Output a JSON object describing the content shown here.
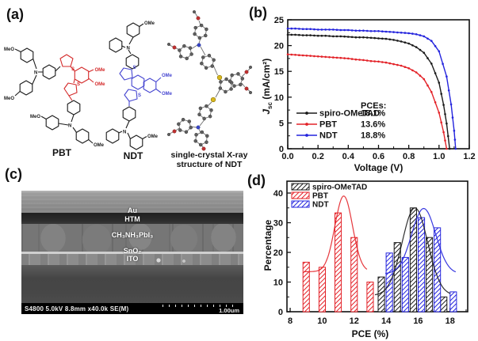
{
  "figure": {
    "panel_labels": {
      "a": "(a)",
      "b": "(b)",
      "c": "(c)",
      "d": "(d)"
    }
  },
  "panel_a": {
    "molecule_names": {
      "pbt": "PBT",
      "ndt": "NDT"
    },
    "xray_caption": [
      "single-crystal X-ray",
      "structure of NDT"
    ],
    "atom_labels": {
      "s": "S",
      "n": "N"
    },
    "pbt_substituents": [
      "MeO",
      "MeO",
      "OMe",
      "OMe",
      "MeO",
      "OMe"
    ],
    "ndt_substituents": [
      "OMe",
      "OMe",
      "OMe",
      "OMe"
    ]
  },
  "panel_c": {
    "layers": [
      "Au",
      "HTM",
      "CH₃NH₃PbI₃",
      "SnO₂",
      "ITO"
    ],
    "footer_left": "S4800 5.0kV 8.8mm x40.0k SE(M)",
    "footer_right": "1.00um"
  },
  "chart_data": [
    {
      "type": "line",
      "title": "",
      "xlabel": "Voltage (V)",
      "ylabel": "Jsc (mA/cm2)",
      "ylabel_parts": {
        "sym": "J",
        "sub": "sc",
        "rest": " (mA/cm²)"
      },
      "xlim": [
        0,
        1.2
      ],
      "ylim": [
        0,
        25
      ],
      "xtick_vals": [
        0,
        0.2,
        0.4,
        0.6,
        0.8,
        1.0,
        1.2
      ],
      "xtick_labels": [
        "0.0",
        "0.2",
        "0.4",
        "0.6",
        "0.8",
        "1.0",
        "1.2"
      ],
      "xminor_vals": [
        0.1,
        0.3,
        0.5,
        0.7,
        0.9,
        1.1
      ],
      "ytick_vals": [
        0,
        5,
        10,
        15,
        20,
        25
      ],
      "ytick_labels": [
        "0",
        "5",
        "10",
        "15",
        "20",
        "25"
      ],
      "yminor_vals": [
        2.5,
        7.5,
        12.5,
        17.5,
        22.5
      ],
      "legend_header": "PCEs:",
      "legend_position": "lower-left",
      "grid": false,
      "series": [
        {
          "name": "spiro-OMeTAD",
          "color": "#1a1a1a",
          "pce": "18.1%",
          "jsc": 22.1,
          "voc": 1.07,
          "points": [
            [
              0,
              22.1
            ],
            [
              0.05,
              22.1
            ],
            [
              0.1,
              22.0
            ],
            [
              0.15,
              22.0
            ],
            [
              0.2,
              21.9
            ],
            [
              0.25,
              21.9
            ],
            [
              0.3,
              21.8
            ],
            [
              0.35,
              21.8
            ],
            [
              0.4,
              21.7
            ],
            [
              0.45,
              21.6
            ],
            [
              0.5,
              21.6
            ],
            [
              0.55,
              21.5
            ],
            [
              0.6,
              21.4
            ],
            [
              0.65,
              21.3
            ],
            [
              0.7,
              21.1
            ],
            [
              0.75,
              20.8
            ],
            [
              0.8,
              20.4
            ],
            [
              0.85,
              19.7
            ],
            [
              0.9,
              18.6
            ],
            [
              0.95,
              16.5
            ],
            [
              1.0,
              12.8
            ],
            [
              1.03,
              8.5
            ],
            [
              1.05,
              4.9
            ],
            [
              1.07,
              0
            ]
          ]
        },
        {
          "name": "PBT",
          "color": "#e32228",
          "pce": "13.6%",
          "jsc": 18.3,
          "voc": 1.05,
          "points": [
            [
              0,
              18.3
            ],
            [
              0.05,
              18.2
            ],
            [
              0.1,
              18.1
            ],
            [
              0.15,
              18.0
            ],
            [
              0.2,
              17.9
            ],
            [
              0.25,
              17.8
            ],
            [
              0.3,
              17.7
            ],
            [
              0.35,
              17.6
            ],
            [
              0.4,
              17.5
            ],
            [
              0.45,
              17.3
            ],
            [
              0.5,
              17.2
            ],
            [
              0.55,
              17.0
            ],
            [
              0.6,
              16.9
            ],
            [
              0.65,
              16.7
            ],
            [
              0.7,
              16.4
            ],
            [
              0.75,
              16.1
            ],
            [
              0.8,
              15.6
            ],
            [
              0.85,
              14.8
            ],
            [
              0.9,
              13.5
            ],
            [
              0.95,
              11.0
            ],
            [
              1.0,
              7.0
            ],
            [
              1.03,
              3.2
            ],
            [
              1.05,
              0
            ]
          ]
        },
        {
          "name": "NDT",
          "color": "#2424dd",
          "pce": "18.8%",
          "jsc": 23.3,
          "voc": 1.11,
          "points": [
            [
              0,
              23.3
            ],
            [
              0.05,
              23.3
            ],
            [
              0.1,
              23.2
            ],
            [
              0.15,
              23.2
            ],
            [
              0.2,
              23.1
            ],
            [
              0.25,
              23.1
            ],
            [
              0.3,
              23.1
            ],
            [
              0.35,
              23.0
            ],
            [
              0.4,
              23.0
            ],
            [
              0.45,
              22.9
            ],
            [
              0.5,
              22.9
            ],
            [
              0.55,
              22.8
            ],
            [
              0.6,
              22.8
            ],
            [
              0.65,
              22.7
            ],
            [
              0.7,
              22.6
            ],
            [
              0.75,
              22.5
            ],
            [
              0.8,
              22.4
            ],
            [
              0.85,
              22.2
            ],
            [
              0.9,
              21.8
            ],
            [
              0.95,
              20.9
            ],
            [
              1.0,
              18.9
            ],
            [
              1.05,
              14.0
            ],
            [
              1.08,
              8.6
            ],
            [
              1.1,
              3.5
            ],
            [
              1.11,
              0
            ]
          ]
        }
      ]
    },
    {
      "type": "bar",
      "title": "",
      "xlabel": "PCE (%)",
      "ylabel": "Percentage",
      "xlim": [
        7.8,
        19.1
      ],
      "ylim": [
        0,
        44
      ],
      "xtick_vals": [
        8,
        10,
        12,
        14,
        16,
        18
      ],
      "xtick_labels": [
        "8",
        "10",
        "12",
        "14",
        "16",
        "18"
      ],
      "xminor_vals": [
        9,
        11,
        13,
        15,
        17,
        19
      ],
      "ytick_vals": [
        0,
        10,
        20,
        30,
        40
      ],
      "ytick_labels": [
        "0",
        "10",
        "20",
        "30",
        "40"
      ],
      "yminor_vals": [
        5,
        15,
        25,
        35
      ],
      "bar_width": 0.4,
      "legend_position": "upper-left",
      "grid": false,
      "series": [
        {
          "name": "spiro-OMeTAD",
          "color": "#1a1a1a",
          "bars": [
            [
              13.7,
              11.7
            ],
            [
              14.7,
              23.3
            ],
            [
              15.7,
              35.0
            ],
            [
              16.7,
              25.0
            ],
            [
              17.6,
              5.0
            ]
          ],
          "fit": {
            "base": 5.5,
            "amp": 29.5,
            "center": 15.8,
            "sigma": 0.8,
            "range": [
              13.3,
              18.0
            ]
          }
        },
        {
          "name": "PBT",
          "color": "#e32228",
          "bars": [
            [
              9.0,
              16.7
            ],
            [
              10.0,
              15.0
            ],
            [
              11.0,
              33.3
            ],
            [
              12.0,
              25.0
            ],
            [
              13.0,
              10.0
            ]
          ],
          "fit": {
            "base": 13.5,
            "amp": 25.5,
            "center": 11.35,
            "sigma": 0.55,
            "range": [
              8.85,
              12.8
            ]
          }
        },
        {
          "name": "NDT",
          "color": "#2424dd",
          "bars": [
            [
              14.2,
              19.8
            ],
            [
              15.2,
              18.3
            ],
            [
              16.2,
              31.7
            ],
            [
              17.2,
              28.3
            ],
            [
              18.2,
              6.7
            ]
          ],
          "fit": {
            "base": 12.8,
            "amp": 22.0,
            "center": 16.35,
            "sigma": 0.75,
            "range": [
              13.95,
              18.35
            ]
          }
        }
      ]
    }
  ]
}
